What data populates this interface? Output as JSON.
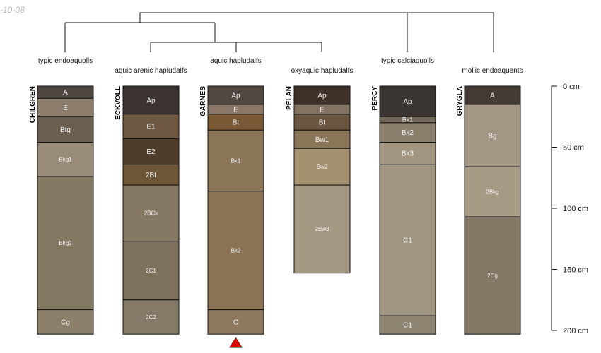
{
  "date_stamp": "-10-08",
  "marker_color": "#dd0000",
  "scale": {
    "unit": "cm",
    "max": 200,
    "ticks": [
      0,
      50,
      100,
      150,
      200
    ],
    "labels": [
      "0 cm",
      "50 cm",
      "100 cm",
      "150 cm",
      "200 cm"
    ]
  },
  "profiles": [
    {
      "name": "CHILGREN",
      "taxon": "typic endoaquolls",
      "horizons": [
        {
          "label": "A",
          "top": 0,
          "bottom": 10,
          "color": "#4e4640"
        },
        {
          "label": "E",
          "top": 10,
          "bottom": 25,
          "color": "#8c7d6c"
        },
        {
          "label": "Btg",
          "top": 25,
          "bottom": 46,
          "color": "#6a5f4f"
        },
        {
          "label": "Bkg1",
          "top": 46,
          "bottom": 74,
          "color": "#988b77"
        },
        {
          "label": "Bkg2",
          "top": 74,
          "bottom": 183,
          "color": "#837862"
        },
        {
          "label": "Cg",
          "top": 183,
          "bottom": 203,
          "color": "#8c806b"
        }
      ]
    },
    {
      "name": "ECKVOLL",
      "taxon": "aquic arenic hapludalfs",
      "horizons": [
        {
          "label": "Ap",
          "top": 0,
          "bottom": 23,
          "color": "#3c3430"
        },
        {
          "label": "E1",
          "top": 23,
          "bottom": 43,
          "color": "#6e5841"
        },
        {
          "label": "E2",
          "top": 43,
          "bottom": 64,
          "color": "#4f3d2b"
        },
        {
          "label": "2Bt",
          "top": 64,
          "bottom": 81,
          "color": "#6d5538"
        },
        {
          "label": "2BCk",
          "top": 81,
          "bottom": 127,
          "color": "#857963"
        },
        {
          "label": "2C1",
          "top": 127,
          "bottom": 175,
          "color": "#7d705c"
        },
        {
          "label": "2C2",
          "top": 175,
          "bottom": 203,
          "color": "#857a67"
        }
      ]
    },
    {
      "name": "GARNES",
      "taxon": "aquic hapludalfs",
      "bottom_marker": true,
      "horizons": [
        {
          "label": "Ap",
          "top": 0,
          "bottom": 15,
          "color": "#524842"
        },
        {
          "label": "E",
          "top": 15,
          "bottom": 23,
          "color": "#8a7767"
        },
        {
          "label": "Bt",
          "top": 23,
          "bottom": 36,
          "color": "#7a5a36"
        },
        {
          "label": "Bk1",
          "top": 36,
          "bottom": 86,
          "color": "#8c7659"
        },
        {
          "label": "Bk2",
          "top": 86,
          "bottom": 183,
          "color": "#8b7358"
        },
        {
          "label": "C",
          "top": 183,
          "bottom": 203,
          "color": "#8e7860"
        }
      ]
    },
    {
      "name": "PELAN",
      "taxon": "oxyaquic hapludalfs",
      "horizons": [
        {
          "label": "Ap",
          "top": 0,
          "bottom": 15,
          "color": "#3e3128"
        },
        {
          "label": "E",
          "top": 15,
          "bottom": 23,
          "color": "#827363"
        },
        {
          "label": "Bt",
          "top": 23,
          "bottom": 36,
          "color": "#6a5641"
        },
        {
          "label": "Bw1",
          "top": 36,
          "bottom": 51,
          "color": "#8a7659"
        },
        {
          "label": "Bw2",
          "top": 51,
          "bottom": 81,
          "color": "#a3916f"
        },
        {
          "label": "2Bw3",
          "top": 81,
          "bottom": 153,
          "color": "#a59883"
        }
      ]
    },
    {
      "name": "PERCY",
      "taxon": "typic calciaquolls",
      "horizons": [
        {
          "label": "Ap",
          "top": 0,
          "bottom": 25,
          "color": "#3b3532"
        },
        {
          "label": "Bk1",
          "top": 25,
          "bottom": 30,
          "color": "#726658"
        },
        {
          "label": "Bk2",
          "top": 30,
          "bottom": 46,
          "color": "#8b7f6d"
        },
        {
          "label": "Bk3",
          "top": 46,
          "bottom": 64,
          "color": "#a39681"
        },
        {
          "label": "C1",
          "top": 64,
          "bottom": 188,
          "color": "#a09580"
        },
        {
          "label": "C1",
          "top": 188,
          "bottom": 203,
          "color": "#8e8472"
        }
      ]
    },
    {
      "name": "GRYGLA",
      "taxon": "mollic endoaquents",
      "horizons": [
        {
          "label": "A",
          "top": 0,
          "bottom": 15,
          "color": "#433a34"
        },
        {
          "label": "Bg",
          "top": 15,
          "bottom": 66,
          "color": "#a39682"
        },
        {
          "label": "2Bkg",
          "top": 66,
          "bottom": 107,
          "color": "#a89b86"
        },
        {
          "label": "2Cg",
          "top": 107,
          "bottom": 203,
          "color": "#857966"
        }
      ]
    }
  ]
}
